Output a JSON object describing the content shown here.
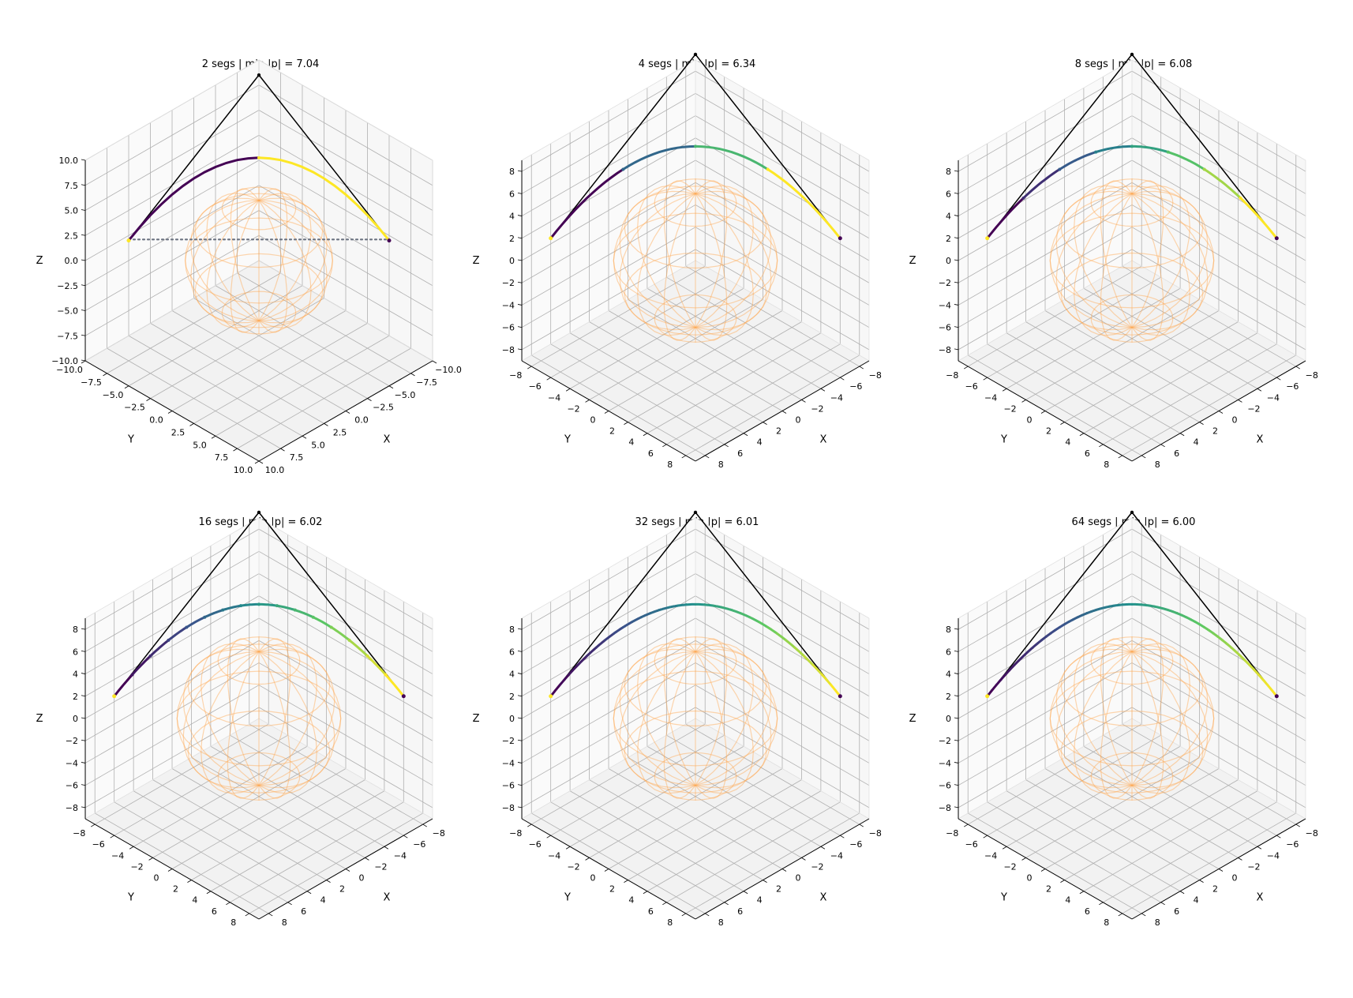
{
  "chart_data": [
    {
      "type": "line",
      "title": "2 segs   |   min |p| = 7.04",
      "xlabel": "X",
      "ylabel": "Y",
      "zlabel": "Z",
      "xlim": [
        -10,
        10
      ],
      "ylim": [
        -10,
        10
      ],
      "zlim": [
        -10,
        10
      ],
      "xticks": [
        -10.0,
        -7.5,
        -5.0,
        -2.5,
        0.0,
        2.5,
        5.0,
        7.5,
        10.0
      ],
      "xtick_labels": [
        "−10.0",
        "−7.5",
        "−5.0",
        "−2.5",
        "0.0",
        "2.5",
        "5.0",
        "7.5",
        "10.0"
      ],
      "yticks": [
        -10.0,
        -7.5,
        -5.0,
        -2.5,
        0.0,
        2.5,
        5.0,
        7.5,
        10.0
      ],
      "ytick_labels": [
        "−10.0",
        "−7.5",
        "−5.0",
        "−2.5",
        "0.0",
        "2.5",
        "5.0",
        "7.5",
        "10.0"
      ],
      "zticks": [
        -10.0,
        -7.5,
        -5.0,
        -2.5,
        0.0,
        2.5,
        5.0,
        7.5,
        10.0
      ],
      "ztick_labels": [
        "−10.0",
        "−7.5",
        "−5.0",
        "−2.5",
        "0.0",
        "2.5",
        "5.0",
        "7.5",
        "10.0"
      ],
      "segments": 2,
      "min_norm": 7.04,
      "sphere_radius": 6,
      "control_polygon": [
        [
          7.5,
          -7.5,
          2
        ],
        [
          -5,
          -5,
          13.5
        ],
        [
          -7.5,
          7.5,
          2
        ]
      ],
      "show_chord": true
    },
    {
      "type": "line",
      "title": "4 segs   |   min |p| = 6.34",
      "xlabel": "X",
      "ylabel": "Y",
      "zlabel": "Z",
      "xlim": [
        -9,
        9
      ],
      "ylim": [
        -9,
        9
      ],
      "zlim": [
        -9,
        9
      ],
      "xticks": [
        -8,
        -6,
        -4,
        -2,
        0,
        2,
        4,
        6,
        8
      ],
      "xtick_labels": [
        "−8",
        "−6",
        "−4",
        "−2",
        "0",
        "2",
        "4",
        "6",
        "8"
      ],
      "yticks": [
        -8,
        -6,
        -4,
        -2,
        0,
        2,
        4,
        6,
        8
      ],
      "ytick_labels": [
        "−8",
        "−6",
        "−4",
        "−2",
        "0",
        "2",
        "4",
        "6",
        "8"
      ],
      "zticks": [
        -8,
        -6,
        -4,
        -2,
        0,
        2,
        4,
        6,
        8
      ],
      "ztick_labels": [
        "−8",
        "−6",
        "−4",
        "−2",
        "0",
        "2",
        "4",
        "6",
        "8"
      ],
      "segments": 4,
      "min_norm": 6.34,
      "sphere_radius": 6,
      "control_polygon": [
        [
          7.5,
          -7.5,
          2
        ],
        [
          -5,
          -5,
          13.5
        ],
        [
          -7.5,
          7.5,
          2
        ]
      ],
      "show_chord": false
    },
    {
      "type": "line",
      "title": "8 segs   |   min |p| = 6.08",
      "xlabel": "X",
      "ylabel": "Y",
      "zlabel": "Z",
      "xlim": [
        -9,
        9
      ],
      "ylim": [
        -9,
        9
      ],
      "zlim": [
        -9,
        9
      ],
      "xticks": [
        -8,
        -6,
        -4,
        -2,
        0,
        2,
        4,
        6,
        8
      ],
      "xtick_labels": [
        "−8",
        "−6",
        "−4",
        "−2",
        "0",
        "2",
        "4",
        "6",
        "8"
      ],
      "yticks": [
        -8,
        -6,
        -4,
        -2,
        0,
        2,
        4,
        6,
        8
      ],
      "ytick_labels": [
        "−8",
        "−6",
        "−4",
        "−2",
        "0",
        "2",
        "4",
        "6",
        "8"
      ],
      "zticks": [
        -8,
        -6,
        -4,
        -2,
        0,
        2,
        4,
        6,
        8
      ],
      "ztick_labels": [
        "−8",
        "−6",
        "−4",
        "−2",
        "0",
        "2",
        "4",
        "6",
        "8"
      ],
      "segments": 8,
      "min_norm": 6.08,
      "sphere_radius": 6,
      "control_polygon": [
        [
          7.5,
          -7.5,
          2
        ],
        [
          -5,
          -5,
          13.5
        ],
        [
          -7.5,
          7.5,
          2
        ]
      ],
      "show_chord": false
    },
    {
      "type": "line",
      "title": "16 segs   |   min |p| = 6.02",
      "xlabel": "X",
      "ylabel": "Y",
      "zlabel": "Z",
      "xlim": [
        -9,
        9
      ],
      "ylim": [
        -9,
        9
      ],
      "zlim": [
        -9,
        9
      ],
      "xticks": [
        -8,
        -6,
        -4,
        -2,
        0,
        2,
        4,
        6,
        8
      ],
      "xtick_labels": [
        "−8",
        "−6",
        "−4",
        "−2",
        "0",
        "2",
        "4",
        "6",
        "8"
      ],
      "yticks": [
        -8,
        -6,
        -4,
        -2,
        0,
        2,
        4,
        6,
        8
      ],
      "ytick_labels": [
        "−8",
        "−6",
        "−4",
        "−2",
        "0",
        "2",
        "4",
        "6",
        "8"
      ],
      "zticks": [
        -8,
        -6,
        -4,
        -2,
        0,
        2,
        4,
        6,
        8
      ],
      "ztick_labels": [
        "−8",
        "−6",
        "−4",
        "−2",
        "0",
        "2",
        "4",
        "6",
        "8"
      ],
      "segments": 16,
      "min_norm": 6.02,
      "sphere_radius": 6,
      "control_polygon": [
        [
          7.5,
          -7.5,
          2
        ],
        [
          -5,
          -5,
          13.5
        ],
        [
          -7.5,
          7.5,
          2
        ]
      ],
      "show_chord": false
    },
    {
      "type": "line",
      "title": "32 segs   |   min |p| = 6.01",
      "xlabel": "X",
      "ylabel": "Y",
      "zlabel": "Z",
      "xlim": [
        -9,
        9
      ],
      "ylim": [
        -9,
        9
      ],
      "zlim": [
        -9,
        9
      ],
      "xticks": [
        -8,
        -6,
        -4,
        -2,
        0,
        2,
        4,
        6,
        8
      ],
      "xtick_labels": [
        "−8",
        "−6",
        "−4",
        "−2",
        "0",
        "2",
        "4",
        "6",
        "8"
      ],
      "yticks": [
        -8,
        -6,
        -4,
        -2,
        0,
        2,
        4,
        6,
        8
      ],
      "ytick_labels": [
        "−8",
        "−6",
        "−4",
        "−2",
        "0",
        "2",
        "4",
        "6",
        "8"
      ],
      "zticks": [
        -8,
        -6,
        -4,
        -2,
        0,
        2,
        4,
        6,
        8
      ],
      "ztick_labels": [
        "−8",
        "−6",
        "−4",
        "−2",
        "0",
        "2",
        "4",
        "6",
        "8"
      ],
      "segments": 32,
      "min_norm": 6.01,
      "sphere_radius": 6,
      "control_polygon": [
        [
          7.5,
          -7.5,
          2
        ],
        [
          -5,
          -5,
          13.5
        ],
        [
          -7.5,
          7.5,
          2
        ]
      ],
      "show_chord": false
    },
    {
      "type": "line",
      "title": "64 segs   |   min |p| = 6.00",
      "xlabel": "X",
      "ylabel": "Y",
      "zlabel": "Z",
      "xlim": [
        -9,
        9
      ],
      "ylim": [
        -9,
        9
      ],
      "zlim": [
        -9,
        9
      ],
      "xticks": [
        -8,
        -6,
        -4,
        -2,
        0,
        2,
        4,
        6,
        8
      ],
      "xtick_labels": [
        "−8",
        "−6",
        "−4",
        "−2",
        "0",
        "2",
        "4",
        "6",
        "8"
      ],
      "yticks": [
        -8,
        -6,
        -4,
        -2,
        0,
        2,
        4,
        6,
        8
      ],
      "ytick_labels": [
        "−8",
        "−6",
        "−4",
        "−2",
        "0",
        "2",
        "4",
        "6",
        "8"
      ],
      "zticks": [
        -8,
        -6,
        -4,
        -2,
        0,
        2,
        4,
        6,
        8
      ],
      "ztick_labels": [
        "−8",
        "−6",
        "−4",
        "−2",
        "0",
        "2",
        "4",
        "6",
        "8"
      ],
      "segments": 64,
      "min_norm": 6.0,
      "sphere_radius": 6,
      "control_polygon": [
        [
          7.5,
          -7.5,
          2
        ],
        [
          -5,
          -5,
          13.5
        ],
        [
          -7.5,
          7.5,
          2
        ]
      ],
      "show_chord": false
    }
  ],
  "colors": {
    "sphere": "#ffa64d",
    "control_polygon": "#000000",
    "chord": "#6b7280",
    "grid": "#b0b0b0",
    "pane": "#f2f2f2",
    "viridis": [
      "#440154",
      "#3b528b",
      "#21918c",
      "#5ec962",
      "#fde725"
    ]
  }
}
